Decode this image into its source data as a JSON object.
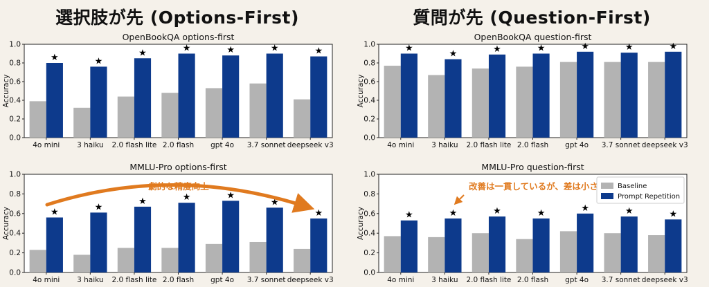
{
  "header": {
    "left_title": "選択肢が先 (Options-First)",
    "right_title": "質問が先 (Question-First)"
  },
  "colors": {
    "baseline": "#b3b3b3",
    "prompt_repetition": "#0d3a8c",
    "annotation": "#e07a1f"
  },
  "chart_data": [
    {
      "type": "bar",
      "title": "OpenBookQA options-first",
      "ylabel": "Accuracy",
      "ylim": [
        0,
        1.0
      ],
      "yticks": [
        "0.0",
        "0.2",
        "0.4",
        "0.6",
        "0.8",
        "1.0"
      ],
      "categories": [
        "4o mini",
        "3 haiku",
        "2.0 flash lite",
        "2.0 flash",
        "gpt 4o",
        "3.7 sonnet",
        "deepseek v3"
      ],
      "series": [
        {
          "name": "Baseline",
          "values": [
            0.39,
            0.32,
            0.44,
            0.48,
            0.53,
            0.58,
            0.41
          ]
        },
        {
          "name": "Prompt Repetition",
          "values": [
            0.8,
            0.76,
            0.85,
            0.9,
            0.88,
            0.9,
            0.87
          ]
        }
      ],
      "star_marker": "★"
    },
    {
      "type": "bar",
      "title": "OpenBookQA question-first",
      "ylabel": "Accuracy",
      "ylim": [
        0,
        1.0
      ],
      "yticks": [
        "0.0",
        "0.2",
        "0.4",
        "0.6",
        "0.8",
        "1.0"
      ],
      "categories": [
        "4o mini",
        "3 haiku",
        "2.0 flash lite",
        "2.0 flash",
        "gpt 4o",
        "3.7 sonnet",
        "deepseek v3"
      ],
      "series": [
        {
          "name": "Baseline",
          "values": [
            0.77,
            0.67,
            0.74,
            0.76,
            0.81,
            0.81,
            0.81
          ]
        },
        {
          "name": "Prompt Repetition",
          "values": [
            0.9,
            0.84,
            0.89,
            0.9,
            0.92,
            0.91,
            0.92
          ]
        }
      ],
      "star_marker": "★"
    },
    {
      "type": "bar",
      "title": "MMLU-Pro options-first",
      "ylabel": "Accuracy",
      "ylim": [
        0,
        1.0
      ],
      "yticks": [
        "0.0",
        "0.2",
        "0.4",
        "0.6",
        "0.8",
        "1.0"
      ],
      "categories": [
        "4o mini",
        "3 haiku",
        "2.0 flash lite",
        "2.0 flash",
        "gpt 4o",
        "3.7 sonnet",
        "deepseek v3"
      ],
      "series": [
        {
          "name": "Baseline",
          "values": [
            0.23,
            0.18,
            0.25,
            0.25,
            0.29,
            0.31,
            0.24
          ]
        },
        {
          "name": "Prompt Repetition",
          "values": [
            0.56,
            0.61,
            0.67,
            0.71,
            0.73,
            0.66,
            0.55
          ]
        }
      ],
      "star_marker": "★",
      "annotation": "劇的な精度向上"
    },
    {
      "type": "bar",
      "title": "MMLU-Pro question-first",
      "ylabel": "Accuracy",
      "ylim": [
        0,
        1.0
      ],
      "yticks": [
        "0.0",
        "0.2",
        "0.4",
        "0.6",
        "0.8",
        "1.0"
      ],
      "categories": [
        "4o mini",
        "3 haiku",
        "2.0 flash lite",
        "2.0 flash",
        "gpt 4o",
        "3.7 sonnet",
        "deepseek v3"
      ],
      "series": [
        {
          "name": "Baseline",
          "values": [
            0.37,
            0.36,
            0.4,
            0.34,
            0.42,
            0.4,
            0.38
          ]
        },
        {
          "name": "Prompt Repetition",
          "values": [
            0.53,
            0.55,
            0.57,
            0.55,
            0.6,
            0.57,
            0.54
          ]
        }
      ],
      "star_marker": "★",
      "annotation": "改善は一貫しているが、差は小さい",
      "legend": [
        "Baseline",
        "Prompt Repetition"
      ],
      "legend_position": "top-right"
    }
  ]
}
